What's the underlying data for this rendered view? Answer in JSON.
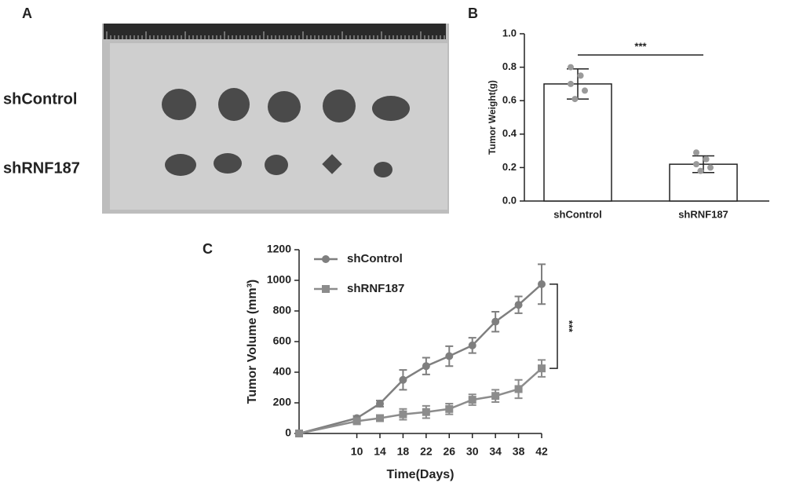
{
  "figure": {
    "panel_labels": [
      "A",
      "B",
      "C"
    ],
    "photo_rows": [
      "shControl",
      "shRNF187"
    ]
  },
  "chart_data": [
    {
      "type": "bar",
      "y_label": "Tumor Weight(g)",
      "categories": [
        "shControl",
        "shRNF187"
      ],
      "values": [
        0.7,
        0.22
      ],
      "errors": [
        0.09,
        0.05
      ],
      "points": [
        [
          0.61,
          0.66,
          0.7,
          0.75,
          0.8
        ],
        [
          0.18,
          0.2,
          0.22,
          0.25,
          0.29
        ]
      ],
      "color": "#ffffff",
      "point_color": "#9a9a9a",
      "ylim": [
        0,
        1
      ],
      "yticks": [
        {
          "value": 0,
          "label": "0.0"
        },
        0.2,
        0.4,
        0.6,
        0.8,
        {
          "value": 1,
          "label": "1.0"
        }
      ],
      "annotation": "***"
    },
    {
      "type": "line",
      "x_label": "Time(Days)",
      "y_label": "Tumor Volume (mm³)",
      "x": [
        0,
        10,
        14,
        18,
        22,
        26,
        30,
        34,
        38,
        42
      ],
      "series": [
        {
          "name": "shControl",
          "color": "#7f7f7f",
          "marker": "circle",
          "values": [
            0,
            100,
            195,
            350,
            440,
            505,
            575,
            730,
            840,
            975
          ],
          "errors": [
            0,
            15,
            20,
            65,
            55,
            65,
            50,
            65,
            55,
            130
          ]
        },
        {
          "name": "shRNF187",
          "color": "#8c8c8c",
          "marker": "square",
          "values": [
            0,
            80,
            100,
            125,
            140,
            160,
            220,
            245,
            290,
            425
          ],
          "errors": [
            0,
            15,
            10,
            35,
            40,
            35,
            35,
            40,
            60,
            55
          ]
        }
      ],
      "xlim": [
        0,
        42
      ],
      "xticks": [
        10,
        14,
        18,
        22,
        26,
        30,
        34,
        38,
        42
      ],
      "ylim": [
        0,
        1200
      ],
      "yticks": [
        0,
        200,
        400,
        600,
        800,
        1000,
        1200
      ],
      "annotation": "***"
    }
  ]
}
